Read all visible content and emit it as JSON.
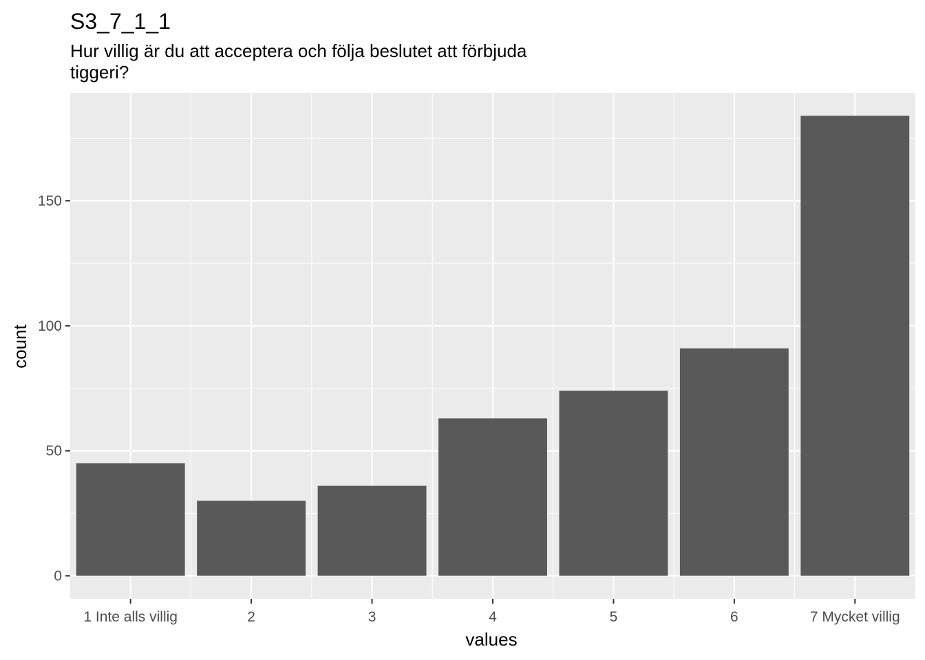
{
  "chart_data": {
    "type": "bar",
    "title": "S3_7_1_1",
    "subtitle": [
      "Hur villig är du att acceptera och följa beslutet att förbjuda",
      "tiggeri?"
    ],
    "xlabel": "values",
    "ylabel": "count",
    "categories": [
      "1 Inte alls villig",
      "2",
      "3",
      "4",
      "5",
      "6",
      "7 Mycket villig"
    ],
    "values": [
      45,
      30,
      36,
      63,
      74,
      91,
      184
    ],
    "ylim": [
      -9.2,
      193.2
    ],
    "yticks": [
      0,
      50,
      100,
      150
    ],
    "grid": true,
    "panel_color": "#ebebeb",
    "bar_color": "#595959",
    "grid_color": "#ffffff"
  }
}
